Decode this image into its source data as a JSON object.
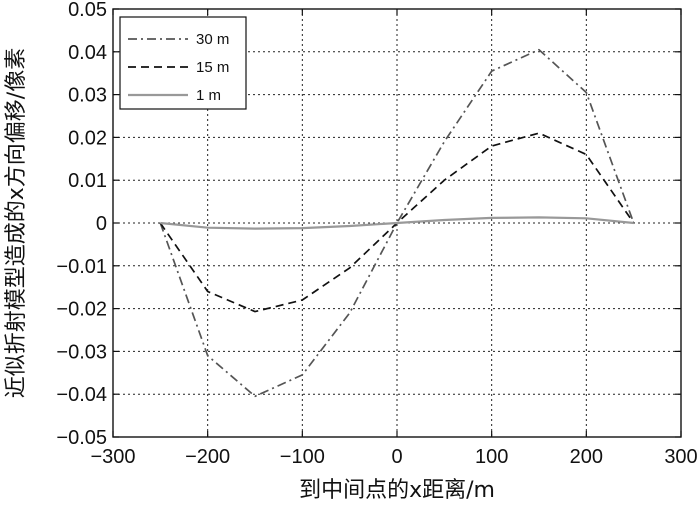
{
  "chart_data": {
    "type": "line",
    "title": "",
    "xlabel": "到中间点的x距离/m",
    "ylabel": "近似折射模型造成的x方向偏移/像素",
    "xlim": [
      -300,
      300
    ],
    "ylim": [
      -0.05,
      0.05
    ],
    "xticks": [
      -300,
      -200,
      -100,
      0,
      100,
      200,
      300
    ],
    "yticks": [
      -0.05,
      -0.04,
      -0.03,
      -0.02,
      -0.01,
      0,
      0.01,
      0.02,
      0.03,
      0.04,
      0.05
    ],
    "xtick_labels": [
      "−300",
      "−200",
      "−100",
      "0",
      "100",
      "200",
      "300"
    ],
    "ytick_labels": [
      "−0.05",
      "−0.04",
      "−0.03",
      "−0.02",
      "−0.01",
      "0",
      "0.01",
      "0.02",
      "0.03",
      "0.04",
      "0.05"
    ],
    "grid": true,
    "legend_position": "top-left",
    "series": [
      {
        "name": "30 m",
        "style": "dashdot",
        "color": "#555555",
        "x": [
          -250,
          -200,
          -150,
          -100,
          -50,
          0,
          50,
          100,
          150,
          200,
          250
        ],
        "y": [
          0,
          -0.031,
          -0.0405,
          -0.0355,
          -0.021,
          0,
          0.019,
          0.0355,
          0.0405,
          0.0305,
          0
        ]
      },
      {
        "name": "15 m",
        "style": "dashed",
        "color": "#111111",
        "x": [
          -250,
          -200,
          -150,
          -100,
          -50,
          0,
          50,
          100,
          150,
          200,
          250
        ],
        "y": [
          0,
          -0.016,
          -0.0207,
          -0.018,
          -0.0105,
          0,
          0.01,
          0.018,
          0.021,
          0.016,
          0
        ]
      },
      {
        "name": "1 m",
        "style": "solid",
        "color": "#999999",
        "x": [
          -250,
          -200,
          -150,
          -100,
          -50,
          0,
          50,
          100,
          150,
          200,
          250
        ],
        "y": [
          0,
          -0.0011,
          -0.0013,
          -0.0012,
          -0.0007,
          0,
          0.0007,
          0.0012,
          0.0013,
          0.0011,
          0
        ]
      }
    ]
  }
}
